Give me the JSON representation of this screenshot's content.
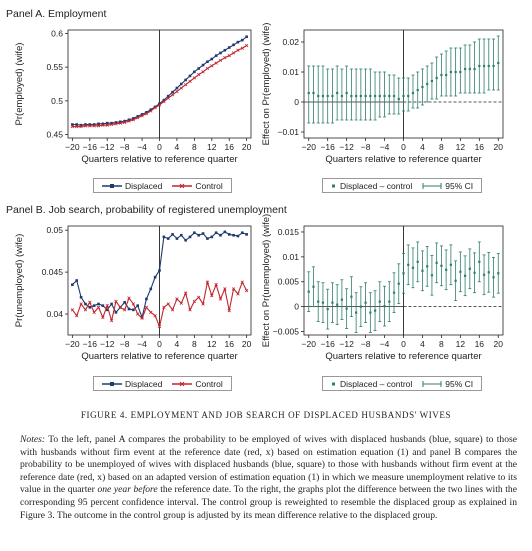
{
  "panelA_title": "Panel A. Employment",
  "panelB_title": "Panel B. Job search, probability of registered unemployment",
  "caption": "FIGURE 4. EMPLOYMENT AND JOB SEARCH OF DISPLACED HUSBANDS' WIVES",
  "notes": {
    "label": "Notes:",
    "part1": " To the left, panel A compares the probability to be employed of wives with displaced husbands (blue, square) to those with husbands without firm event at the reference date (red, x) based on estimation equation (1) and panel B compares the probability to be unemployed of wives with displaced husbands (blue, square) to those with husbands without firm event at the reference date (red, x) based on an adapted version of estimation equation (1) in which we measure unemployment relative to its value in the quarter ",
    "italic": "one year before",
    "part2": " the reference date. To the right, the graphs plot the difference between the two lines with the corresponding 95 percent confidence interval. The control group is reweighted to resemble the displaced group as explained in Figure 3. The outcome in the control group is adjusted by its mean difference relative to the displaced group."
  },
  "legend_left": {
    "displaced": "Displaced",
    "control": "Control"
  },
  "legend_right": {
    "diff": "Displaced – control",
    "ci": "95% CI"
  },
  "colors": {
    "displaced": "#1f3a6e",
    "control": "#c0262d",
    "diff": "#2e7d6e",
    "axis": "#222222"
  },
  "chart_data": [
    {
      "id": "A1",
      "type": "line",
      "xlabel": "Quarters relative to reference quarter",
      "ylabel": "Pr(employed) (wife)",
      "xlim": [
        -21,
        21
      ],
      "ylim": [
        0.445,
        0.605
      ],
      "xticks": [
        -20,
        -16,
        -12,
        -8,
        -4,
        0,
        4,
        8,
        12,
        16,
        20
      ],
      "xtick_labels": [
        "−20",
        "−16",
        "−12",
        "−8",
        "−4",
        "0",
        "4",
        "8",
        "12",
        "16",
        "20"
      ],
      "yticks": [
        0.45,
        0.5,
        0.55,
        0.6
      ],
      "ytick_labels": [
        "0.45",
        "0.5",
        "0.55",
        "0.6"
      ],
      "x": [
        -20,
        -19,
        -18,
        -17,
        -16,
        -15,
        -14,
        -13,
        -12,
        -11,
        -10,
        -9,
        -8,
        -7,
        -6,
        -5,
        -4,
        -3,
        -2,
        -1,
        0,
        1,
        2,
        3,
        4,
        5,
        6,
        7,
        8,
        9,
        10,
        11,
        12,
        13,
        14,
        15,
        16,
        17,
        18,
        19,
        20
      ],
      "series": [
        {
          "name": "Displaced",
          "values": [
            0.465,
            0.465,
            0.464,
            0.465,
            0.465,
            0.465,
            0.466,
            0.466,
            0.467,
            0.467,
            0.468,
            0.469,
            0.47,
            0.472,
            0.474,
            0.477,
            0.48,
            0.483,
            0.487,
            0.491,
            0.496,
            0.501,
            0.507,
            0.513,
            0.519,
            0.525,
            0.531,
            0.537,
            0.543,
            0.548,
            0.553,
            0.558,
            0.562,
            0.567,
            0.571,
            0.575,
            0.579,
            0.583,
            0.587,
            0.59,
            0.595
          ]
        },
        {
          "name": "Control",
          "values": [
            0.462,
            0.462,
            0.462,
            0.463,
            0.463,
            0.463,
            0.463,
            0.464,
            0.464,
            0.465,
            0.466,
            0.467,
            0.468,
            0.47,
            0.472,
            0.475,
            0.478,
            0.481,
            0.485,
            0.49,
            0.494,
            0.499,
            0.504,
            0.509,
            0.514,
            0.519,
            0.524,
            0.529,
            0.534,
            0.539,
            0.543,
            0.548,
            0.552,
            0.556,
            0.56,
            0.564,
            0.567,
            0.571,
            0.575,
            0.578,
            0.582
          ]
        }
      ]
    },
    {
      "id": "A2",
      "type": "scatter",
      "xlabel": "Quarters relative to reference quarter",
      "ylabel": "Effect on Pr(employed) (wife)",
      "xlim": [
        -21,
        21
      ],
      "ylim": [
        -0.012,
        0.024
      ],
      "xticks": [
        -20,
        -16,
        -12,
        -8,
        -4,
        0,
        4,
        8,
        12,
        16,
        20
      ],
      "xtick_labels": [
        "−20",
        "−16",
        "−12",
        "−8",
        "−4",
        "0",
        "4",
        "8",
        "12",
        "16",
        "20"
      ],
      "yticks": [
        -0.01,
        0,
        0.01,
        0.02
      ],
      "ytick_labels": [
        "−0.01",
        "0",
        "0.01",
        "0.02"
      ],
      "x": [
        -20,
        -19,
        -18,
        -17,
        -16,
        -15,
        -14,
        -13,
        -12,
        -11,
        -10,
        -9,
        -8,
        -7,
        -6,
        -5,
        -4,
        -3,
        -2,
        -1,
        0,
        1,
        2,
        3,
        4,
        5,
        6,
        7,
        8,
        9,
        10,
        11,
        12,
        13,
        14,
        15,
        16,
        17,
        18,
        19,
        20
      ],
      "values": [
        0.003,
        0.003,
        0.002,
        0.002,
        0.002,
        0.002,
        0.003,
        0.002,
        0.003,
        0.002,
        0.002,
        0.002,
        0.002,
        0.002,
        0.002,
        0.002,
        0.002,
        0.002,
        0.002,
        0.001,
        0.002,
        0.002,
        0.003,
        0.004,
        0.005,
        0.006,
        0.007,
        0.008,
        0.009,
        0.009,
        0.01,
        0.01,
        0.01,
        0.011,
        0.011,
        0.011,
        0.012,
        0.012,
        0.012,
        0.012,
        0.013
      ],
      "ci_low": [
        -0.007,
        -0.007,
        -0.007,
        -0.007,
        -0.007,
        -0.007,
        -0.006,
        -0.006,
        -0.006,
        -0.006,
        -0.006,
        -0.006,
        -0.006,
        -0.006,
        -0.006,
        -0.005,
        -0.005,
        -0.004,
        -0.004,
        -0.004,
        -0.003,
        -0.003,
        -0.002,
        -0.002,
        -0.001,
        0,
        0.001,
        0.001,
        0.002,
        0.002,
        0.002,
        0.002,
        0.003,
        0.003,
        0.003,
        0.003,
        0.003,
        0.003,
        0.004,
        0.004,
        0.004
      ],
      "ci_high": [
        0.012,
        0.012,
        0.012,
        0.012,
        0.011,
        0.011,
        0.012,
        0.011,
        0.012,
        0.011,
        0.011,
        0.011,
        0.011,
        0.011,
        0.01,
        0.01,
        0.01,
        0.009,
        0.009,
        0.008,
        0.008,
        0.008,
        0.009,
        0.01,
        0.011,
        0.012,
        0.013,
        0.015,
        0.016,
        0.017,
        0.018,
        0.018,
        0.018,
        0.019,
        0.019,
        0.02,
        0.021,
        0.021,
        0.021,
        0.021,
        0.022
      ]
    },
    {
      "id": "B1",
      "type": "line",
      "xlabel": "Quarters relative to reference quarter",
      "ylabel": "Pr(unemployed) (wife)",
      "xlim": [
        -21,
        21
      ],
      "ylim": [
        0.0375,
        0.0505
      ],
      "xticks": [
        -20,
        -16,
        -12,
        -8,
        -4,
        0,
        4,
        8,
        12,
        16,
        20
      ],
      "xtick_labels": [
        "−20",
        "−16",
        "−12",
        "−8",
        "−4",
        "0",
        "4",
        "8",
        "12",
        "16",
        "20"
      ],
      "yticks": [
        0.04,
        0.045,
        0.05
      ],
      "ytick_labels": [
        "0.04",
        "0.045",
        "0.05"
      ],
      "x": [
        -20,
        -19,
        -18,
        -17,
        -16,
        -15,
        -14,
        -13,
        -12,
        -11,
        -10,
        -9,
        -8,
        -7,
        -6,
        -5,
        -4,
        -3,
        -2,
        -1,
        0,
        1,
        2,
        3,
        4,
        5,
        6,
        7,
        8,
        9,
        10,
        11,
        12,
        13,
        14,
        15,
        16,
        17,
        18,
        19,
        20
      ],
      "series": [
        {
          "name": "Displaced",
          "values": [
            0.0435,
            0.044,
            0.042,
            0.0412,
            0.0408,
            0.041,
            0.0412,
            0.041,
            0.0405,
            0.0412,
            0.0402,
            0.0408,
            0.0414,
            0.0406,
            0.0405,
            0.041,
            0.0396,
            0.0418,
            0.043,
            0.0444,
            0.0452,
            0.0492,
            0.049,
            0.0495,
            0.049,
            0.0494,
            0.0488,
            0.0492,
            0.0497,
            0.0494,
            0.0496,
            0.049,
            0.0492,
            0.0497,
            0.0494,
            0.0498,
            0.0495,
            0.0494,
            0.0493,
            0.0497,
            0.0495
          ]
        },
        {
          "name": "Control",
          "values": [
            0.0405,
            0.0398,
            0.0412,
            0.0405,
            0.0414,
            0.0402,
            0.0408,
            0.0396,
            0.041,
            0.0392,
            0.0415,
            0.0408,
            0.0405,
            0.0419,
            0.0412,
            0.04,
            0.0395,
            0.0408,
            0.0402,
            0.0398,
            0.0385,
            0.0408,
            0.0412,
            0.0405,
            0.0418,
            0.0413,
            0.0425,
            0.0405,
            0.0415,
            0.042,
            0.0412,
            0.0438,
            0.0422,
            0.0435,
            0.0418,
            0.043,
            0.0404,
            0.043,
            0.0424,
            0.0438,
            0.0428
          ]
        }
      ]
    },
    {
      "id": "B2",
      "type": "scatter",
      "xlabel": "Quarters relative to reference quarter",
      "ylabel": "Effect on Pr(unemployed) (wife)",
      "xlim": [
        -21,
        21
      ],
      "ylim": [
        -0.0057,
        0.0162
      ],
      "xticks": [
        -20,
        -16,
        -12,
        -8,
        -4,
        0,
        4,
        8,
        12,
        16,
        20
      ],
      "xtick_labels": [
        "−20",
        "−16",
        "−12",
        "−8",
        "−4",
        "0",
        "4",
        "8",
        "12",
        "16",
        "20"
      ],
      "yticks": [
        -0.005,
        0,
        0.005,
        0.01,
        0.015
      ],
      "ytick_labels": [
        "−0.005",
        "0",
        "0.005",
        "0.01",
        "0.015"
      ],
      "x": [
        -20,
        -19,
        -18,
        -17,
        -16,
        -15,
        -14,
        -13,
        -12,
        -11,
        -10,
        -9,
        -8,
        -7,
        -6,
        -5,
        -4,
        -3,
        -2,
        -1,
        0,
        1,
        2,
        3,
        4,
        5,
        6,
        7,
        8,
        9,
        10,
        11,
        12,
        13,
        14,
        15,
        16,
        17,
        18,
        19,
        20
      ],
      "values": [
        0.003,
        0.004,
        0.001,
        0.0008,
        -0.0005,
        0.0008,
        0.0004,
        0.0014,
        -0.0004,
        0.002,
        -0.0012,
        0,
        0.0008,
        -0.0012,
        -0.0008,
        0.001,
        0.0001,
        0.001,
        0.0028,
        0.0046,
        0.0067,
        0.0084,
        0.0078,
        0.009,
        0.0072,
        0.0081,
        0.0063,
        0.0088,
        0.0082,
        0.0074,
        0.0084,
        0.0052,
        0.007,
        0.0062,
        0.0076,
        0.0068,
        0.009,
        0.0064,
        0.0069,
        0.0059,
        0.0067
      ],
      "ci_low": [
        -0.001,
        0,
        -0.003,
        -0.0032,
        -0.0045,
        -0.0032,
        -0.0036,
        -0.0026,
        -0.0044,
        -0.002,
        -0.0052,
        -0.004,
        -0.0032,
        -0.0052,
        -0.0048,
        -0.003,
        -0.0039,
        -0.003,
        -0.0012,
        0.0006,
        0.0027,
        0.0044,
        0.0038,
        0.005,
        0.0032,
        0.0041,
        0.0023,
        0.0048,
        0.0042,
        0.0034,
        0.0044,
        0.0012,
        0.003,
        0.0022,
        0.0036,
        0.0028,
        0.005,
        0.0024,
        0.0029,
        0.0019,
        0.0027
      ],
      "ci_high": [
        0.007,
        0.008,
        0.005,
        0.0048,
        0.0035,
        0.0048,
        0.0044,
        0.0054,
        0.0036,
        0.006,
        0.0028,
        0.004,
        0.0048,
        0.0028,
        0.0032,
        0.005,
        0.0041,
        0.005,
        0.0068,
        0.0086,
        0.0107,
        0.0124,
        0.0118,
        0.013,
        0.0112,
        0.0121,
        0.0103,
        0.0128,
        0.0122,
        0.0114,
        0.0124,
        0.0092,
        0.011,
        0.0102,
        0.0116,
        0.0108,
        0.013,
        0.0104,
        0.0109,
        0.0099,
        0.0107
      ]
    }
  ]
}
